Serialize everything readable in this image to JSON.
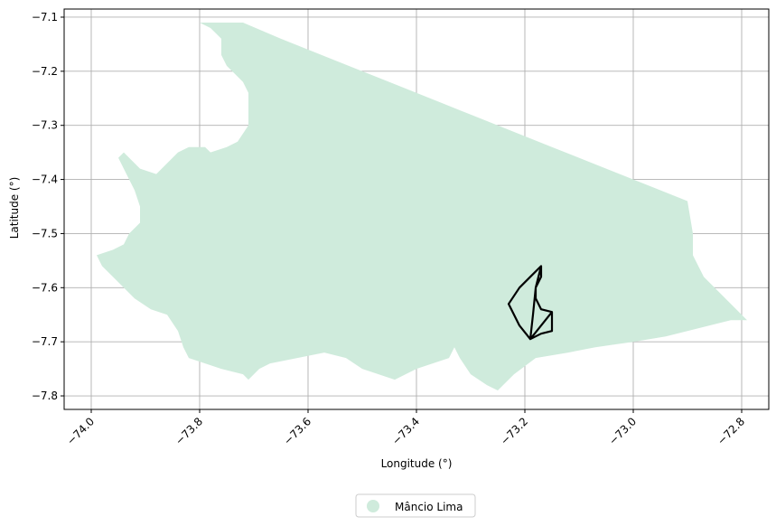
{
  "chart_data": {
    "type": "map",
    "xlabel": "Longitude (°)",
    "ylabel": "Latitude (°)",
    "xlim": [
      -74.05,
      -72.75
    ],
    "ylim": [
      -7.825,
      -7.085
    ],
    "xticks": [
      -74.0,
      -73.8,
      -73.6,
      -73.4,
      -73.2,
      -73.0,
      -72.8
    ],
    "xtick_labels": [
      "−74.0",
      "−73.8",
      "−73.6",
      "−73.4",
      "−73.2",
      "−73.0",
      "−72.8"
    ],
    "yticks": [
      -7.1,
      -7.2,
      -7.3,
      -7.4,
      -7.5,
      -7.6,
      -7.7,
      -7.8
    ],
    "ytick_labels": [
      "−7.1",
      "−7.2",
      "−7.3",
      "−7.4",
      "−7.5",
      "−7.6",
      "−7.7",
      "−7.8"
    ],
    "grid": true,
    "legend": {
      "placement": "bottom-center",
      "entries": [
        {
          "label": "Mâncio Lima",
          "color": "#cfebdc"
        }
      ]
    },
    "region": {
      "name": "Mâncio Lima",
      "fill": "#cfebdc",
      "boundary": [
        [
          -73.8,
          -7.11
        ],
        [
          -73.78,
          -7.12
        ],
        [
          -73.77,
          -7.13
        ],
        [
          -73.76,
          -7.14
        ],
        [
          -73.76,
          -7.17
        ],
        [
          -73.75,
          -7.19
        ],
        [
          -73.74,
          -7.2
        ],
        [
          -73.72,
          -7.22
        ],
        [
          -73.71,
          -7.24
        ],
        [
          -73.71,
          -7.27
        ],
        [
          -73.71,
          -7.3
        ],
        [
          -73.73,
          -7.33
        ],
        [
          -73.75,
          -7.34
        ],
        [
          -73.78,
          -7.35
        ],
        [
          -73.79,
          -7.34
        ],
        [
          -73.82,
          -7.34
        ],
        [
          -73.84,
          -7.35
        ],
        [
          -73.87,
          -7.38
        ],
        [
          -73.88,
          -7.39
        ],
        [
          -73.91,
          -7.38
        ],
        [
          -73.93,
          -7.36
        ],
        [
          -73.94,
          -7.35
        ],
        [
          -73.95,
          -7.36
        ],
        [
          -73.94,
          -7.38
        ],
        [
          -73.93,
          -7.4
        ],
        [
          -73.92,
          -7.42
        ],
        [
          -73.91,
          -7.45
        ],
        [
          -73.91,
          -7.48
        ],
        [
          -73.93,
          -7.5
        ],
        [
          -73.94,
          -7.52
        ],
        [
          -73.96,
          -7.53
        ],
        [
          -73.99,
          -7.54
        ],
        [
          -73.98,
          -7.56
        ],
        [
          -73.96,
          -7.58
        ],
        [
          -73.94,
          -7.6
        ],
        [
          -73.92,
          -7.62
        ],
        [
          -73.89,
          -7.64
        ],
        [
          -73.86,
          -7.65
        ],
        [
          -73.84,
          -7.68
        ],
        [
          -73.83,
          -7.71
        ],
        [
          -73.82,
          -7.73
        ],
        [
          -73.79,
          -7.74
        ],
        [
          -73.76,
          -7.75
        ],
        [
          -73.72,
          -7.76
        ],
        [
          -73.71,
          -7.77
        ],
        [
          -73.69,
          -7.75
        ],
        [
          -73.67,
          -7.74
        ],
        [
          -73.62,
          -7.73
        ],
        [
          -73.57,
          -7.72
        ],
        [
          -73.53,
          -7.73
        ],
        [
          -73.5,
          -7.75
        ],
        [
          -73.47,
          -7.76
        ],
        [
          -73.44,
          -7.77
        ],
        [
          -73.42,
          -7.76
        ],
        [
          -73.4,
          -7.75
        ],
        [
          -73.37,
          -7.74
        ],
        [
          -73.34,
          -7.73
        ],
        [
          -73.33,
          -7.71
        ],
        [
          -73.32,
          -7.73
        ],
        [
          -73.3,
          -7.76
        ],
        [
          -73.27,
          -7.78
        ],
        [
          -73.25,
          -7.79
        ],
        [
          -73.22,
          -7.76
        ],
        [
          -73.18,
          -7.73
        ],
        [
          -73.12,
          -7.72
        ],
        [
          -73.07,
          -7.71
        ],
        [
          -73.0,
          -7.7
        ],
        [
          -72.94,
          -7.69
        ],
        [
          -72.9,
          -7.68
        ],
        [
          -72.86,
          -7.67
        ],
        [
          -72.82,
          -7.66
        ],
        [
          -72.79,
          -7.66
        ],
        [
          -72.8,
          -7.65
        ],
        [
          -72.83,
          -7.62
        ],
        [
          -72.85,
          -7.6
        ],
        [
          -72.87,
          -7.58
        ],
        [
          -72.89,
          -7.54
        ],
        [
          -72.89,
          -7.5
        ],
        [
          -72.9,
          -7.44
        ],
        [
          -72.95,
          -7.42
        ],
        [
          -73.05,
          -7.38
        ],
        [
          -73.15,
          -7.34
        ],
        [
          -73.25,
          -7.3
        ],
        [
          -73.35,
          -7.26
        ],
        [
          -73.45,
          -7.22
        ],
        [
          -73.55,
          -7.18
        ],
        [
          -73.65,
          -7.14
        ],
        [
          -73.72,
          -7.11
        ],
        [
          -73.8,
          -7.11
        ]
      ]
    },
    "outline": {
      "stroke": "#000000",
      "path": [
        [
          -73.17,
          -7.56
        ],
        [
          -73.17,
          -7.58
        ],
        [
          -73.18,
          -7.6
        ],
        [
          -73.18,
          -7.62
        ],
        [
          -73.17,
          -7.64
        ],
        [
          -73.15,
          -7.645
        ],
        [
          -73.15,
          -7.68
        ],
        [
          -73.17,
          -7.685
        ],
        [
          -73.19,
          -7.695
        ],
        [
          -73.21,
          -7.67
        ],
        [
          -73.23,
          -7.63
        ],
        [
          -73.21,
          -7.6
        ],
        [
          -73.19,
          -7.58
        ],
        [
          -73.17,
          -7.56
        ],
        [
          -73.18,
          -7.6
        ],
        [
          -73.185,
          -7.65
        ],
        [
          -73.19,
          -7.695
        ],
        [
          -73.15,
          -7.645
        ]
      ]
    }
  }
}
